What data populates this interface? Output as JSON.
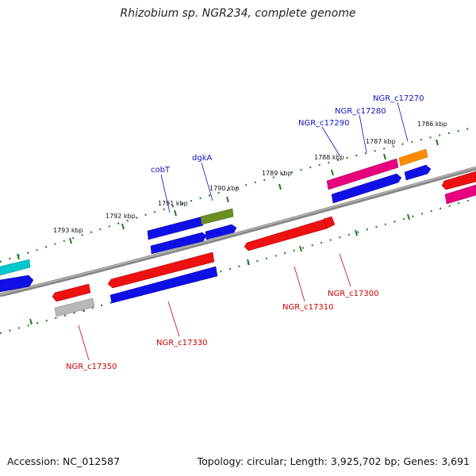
{
  "title": "Rhizobium sp. NGR234, complete genome",
  "footer": {
    "accession": "Accession: NC_012587",
    "topology": "Topology: circular; Length: 3,925,702 bp; Genes: 3,691"
  },
  "colors": {
    "backbone": "#7a7a7a",
    "tick": "#1f7a1f",
    "forward_label": "#1010c0",
    "reverse_label": "#cc0000"
  },
  "scale_labels": [
    "1786 kbp",
    "1787 kbp",
    "1788 kbp",
    "1789 kbp",
    "1790 kbp",
    "1791 kbp",
    "1792 kbp",
    "1793 kbp"
  ],
  "forward_gene_labels": [
    "NGR_c17270",
    "NGR_c17280",
    "NGR_c17290",
    "dgkA",
    "cobT"
  ],
  "reverse_gene_labels": [
    "NGR_c17300",
    "NGR_c17310",
    "NGR_c17330",
    "NGR_c17350"
  ]
}
